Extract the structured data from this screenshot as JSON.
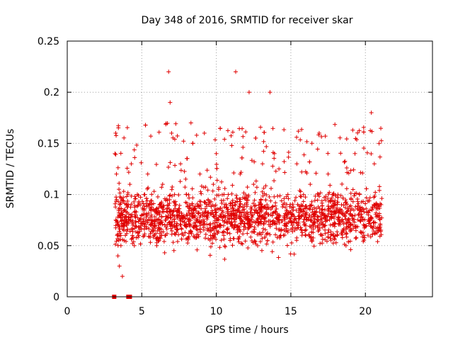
{
  "chart_data": {
    "type": "scatter",
    "title": "Day 348 of 2016, SRMTID for receiver skar",
    "xlabel": "GPS time / hours",
    "ylabel": "SRMTID / TECUs",
    "xlim": [
      0,
      24.5
    ],
    "ylim": [
      0,
      0.25
    ],
    "x_ticks": [
      0,
      5,
      10,
      15,
      20
    ],
    "y_ticks": [
      0,
      0.05,
      0.1,
      0.15,
      0.2,
      0.25
    ],
    "x_tick_labels": [
      "0",
      "5",
      "10",
      "15",
      "20"
    ],
    "y_tick_labels": [
      "0",
      "0.05",
      "0.1",
      "0.15",
      "0.2",
      "0.25"
    ],
    "grid": true,
    "marker": "+",
    "color": "#e00000",
    "data_start_hour": 3.2,
    "data_end_hour": 21.1,
    "zero_markers_x": [
      3.15,
      4.1,
      4.2
    ],
    "series": [
      {
        "x": [
          3.2,
          3.25,
          3.3,
          3.35,
          3.4,
          3.45,
          3.5,
          3.6,
          3.7,
          3.8,
          3.9,
          4.0,
          4.1,
          4.2,
          4.3,
          4.4,
          4.5,
          4.6,
          4.7,
          4.8,
          4.9,
          5.0,
          5.2,
          5.4,
          5.6,
          5.8,
          6.0,
          6.2,
          6.4,
          6.6,
          6.8,
          6.9,
          7.0,
          7.2,
          7.4,
          7.6,
          7.8,
          8.0,
          8.3,
          8.6,
          8.9,
          9.2,
          9.5,
          9.8,
          10.0,
          10.2,
          10.5,
          10.8,
          11.0,
          11.3,
          11.6,
          11.9,
          12.2,
          12.5,
          12.8,
          13.1,
          13.4,
          13.6,
          13.9,
          14.2,
          14.5,
          14.8,
          15.1,
          15.4,
          15.7,
          16.0,
          16.3,
          16.6,
          16.9,
          17.2,
          17.5,
          17.8,
          18.1,
          18.4,
          18.7,
          19.0,
          19.3,
          19.6,
          19.9,
          20.2,
          20.4,
          20.6,
          20.8,
          21.0
        ],
        "y": [
          0.14,
          0.16,
          0.12,
          0.06,
          0.04,
          0.07,
          0.03,
          0.05,
          0.02,
          0.065,
          0.06,
          0.07,
          0.09,
          0.11,
          0.13,
          0.07,
          0.05,
          0.08,
          0.1,
          0.06,
          0.09,
          0.08,
          0.1,
          0.12,
          0.07,
          0.06,
          0.05,
          0.09,
          0.11,
          0.06,
          0.22,
          0.19,
          0.16,
          0.1,
          0.08,
          0.13,
          0.06,
          0.1,
          0.17,
          0.07,
          0.12,
          0.16,
          0.09,
          0.11,
          0.14,
          0.07,
          0.06,
          0.1,
          0.08,
          0.22,
          0.12,
          0.09,
          0.2,
          0.11,
          0.07,
          0.13,
          0.09,
          0.2,
          0.14,
          0.08,
          0.06,
          0.1,
          0.07,
          0.13,
          0.09,
          0.06,
          0.11,
          0.08,
          0.16,
          0.07,
          0.12,
          0.1,
          0.06,
          0.09,
          0.05,
          0.07,
          0.14,
          0.1,
          0.06,
          0.08,
          0.18,
          0.13,
          0.09,
          0.07
        ]
      }
    ]
  }
}
